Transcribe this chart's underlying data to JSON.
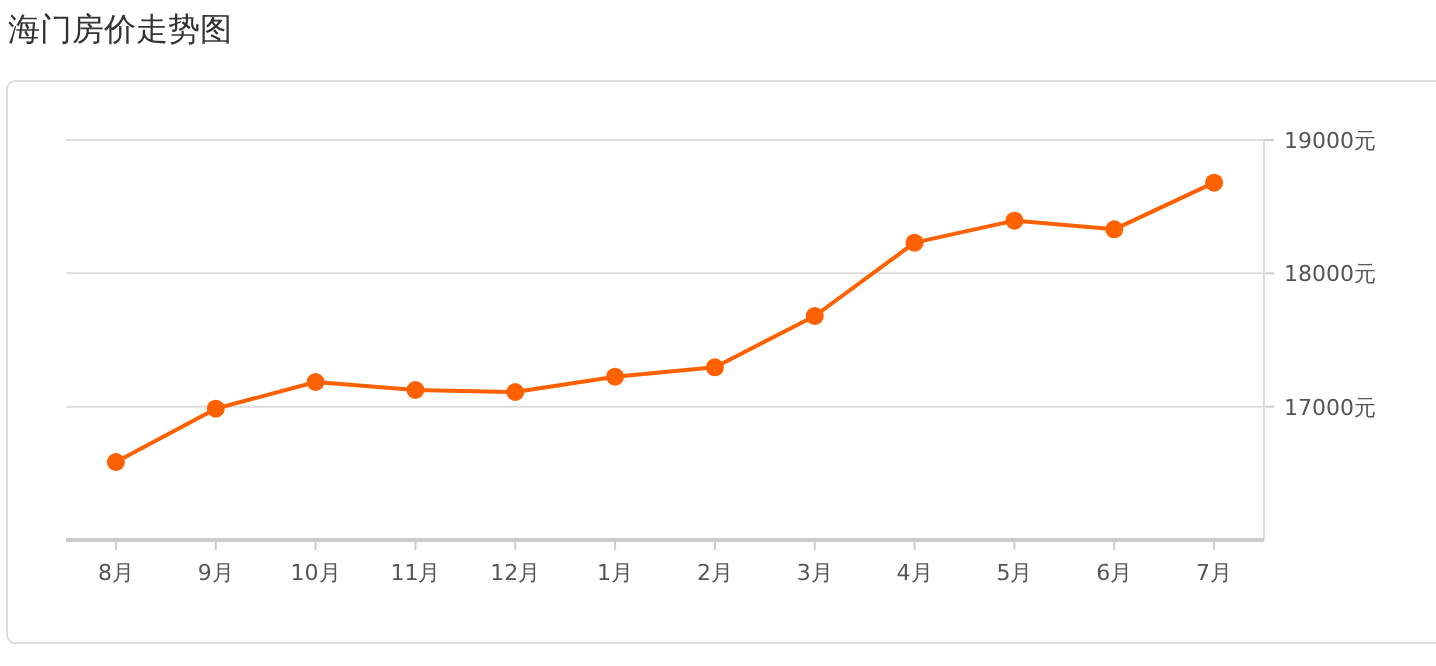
{
  "chart_data": {
    "type": "line",
    "title": "海门房价走势图",
    "categories": [
      "8月",
      "9月",
      "10月",
      "11月",
      "12月",
      "1月",
      "2月",
      "3月",
      "4月",
      "5月",
      "6月",
      "7月"
    ],
    "series": [
      {
        "color": "#ff6000",
        "values": [
          16585,
          16985,
          17185,
          17125,
          17110,
          17225,
          17295,
          17680,
          18230,
          18395,
          18330,
          18680
        ]
      }
    ],
    "ylim": [
      16000,
      19000
    ],
    "yticks": [
      {
        "value": 17000,
        "label": "17000元"
      },
      {
        "value": 18000,
        "label": "18000元"
      },
      {
        "value": 19000,
        "label": "19000元"
      }
    ],
    "grid": "y",
    "marker": "circle"
  }
}
